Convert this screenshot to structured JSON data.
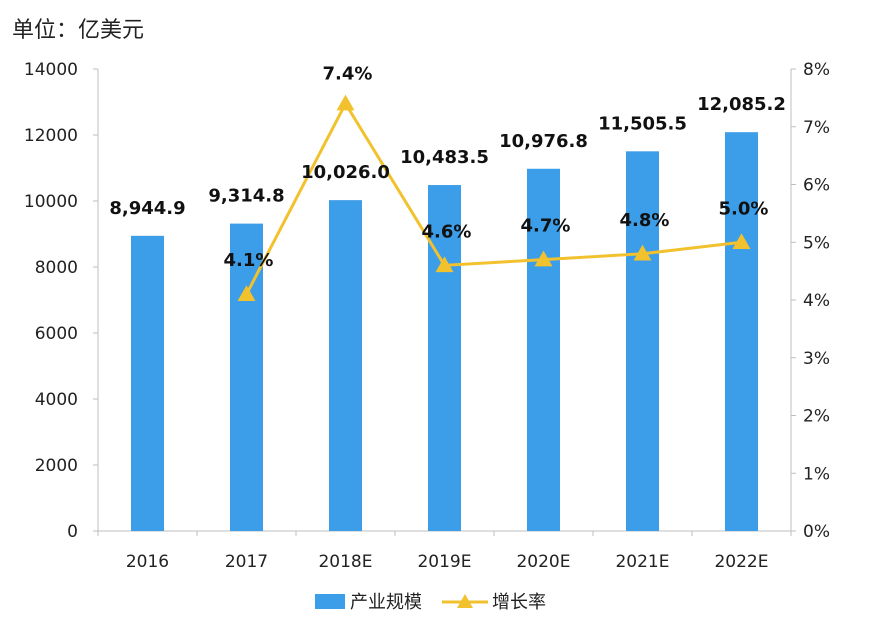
{
  "unit_label": "单位：亿美元",
  "chart_data": {
    "type": "bar",
    "categories": [
      "2016",
      "2017",
      "2018E",
      "2019E",
      "2020E",
      "2021E",
      "2022E"
    ],
    "series": [
      {
        "name": "产业规模",
        "type": "bar",
        "axis": "left",
        "values": [
          8944.9,
          9314.8,
          10026.0,
          10483.5,
          10976.8,
          11505.5,
          12085.2
        ],
        "labels": [
          "8,944.9",
          "9,314.8",
          "10,026.0",
          "10,483.5",
          "10,976.8",
          "11,505.5",
          "12,085.2"
        ],
        "color": "#3c9de8"
      },
      {
        "name": "增长率",
        "type": "line",
        "axis": "right",
        "values": [
          null,
          4.1,
          7.4,
          4.6,
          4.7,
          4.8,
          5.0
        ],
        "labels": [
          "",
          "4.1%",
          "7.4%",
          "4.6%",
          "4.7%",
          "4.8%",
          "5.0%"
        ],
        "color": "#f2c12e",
        "marker": "triangle"
      }
    ],
    "ylim_left": [
      0,
      14000
    ],
    "yticks_left": [
      "0",
      "2000",
      "4000",
      "6000",
      "8000",
      "10000",
      "12000",
      "14000"
    ],
    "ylim_right": [
      0,
      8
    ],
    "yticks_right": [
      "0%",
      "1%",
      "2%",
      "3%",
      "4%",
      "5%",
      "6%",
      "7%",
      "8%"
    ],
    "grid": false,
    "legend_position": "bottom"
  }
}
